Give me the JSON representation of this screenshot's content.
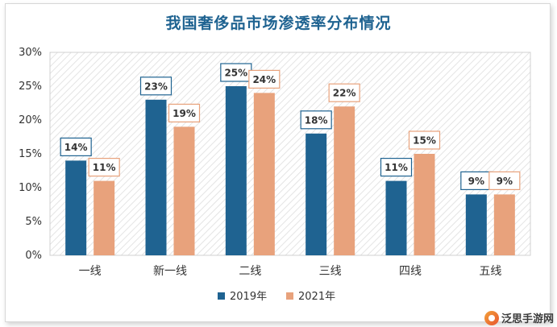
{
  "chart_data": {
    "type": "bar",
    "title": "我国奢侈品市场渗透率分布情况",
    "categories": [
      "一线",
      "新一线",
      "二线",
      "三线",
      "四线",
      "五线"
    ],
    "series": [
      {
        "name": "2019年",
        "values": [
          14,
          23,
          25,
          18,
          11,
          9
        ],
        "labels": [
          "14%",
          "23%",
          "25%",
          "18%",
          "11%",
          "9%"
        ],
        "color": "#1f6391"
      },
      {
        "name": "2021年",
        "values": [
          11,
          19,
          24,
          22,
          15,
          9
        ],
        "labels": [
          "11%",
          "19%",
          "24%",
          "22%",
          "15%",
          "9%"
        ],
        "color": "#e8a27c"
      }
    ],
    "yticks": [
      "0%",
      "5%",
      "10%",
      "15%",
      "20%",
      "25%",
      "30%"
    ],
    "ylim": [
      0,
      30
    ],
    "grid": false,
    "legend": "bottom-center",
    "plot_background": "hatched"
  },
  "watermark": "泛思手游网"
}
